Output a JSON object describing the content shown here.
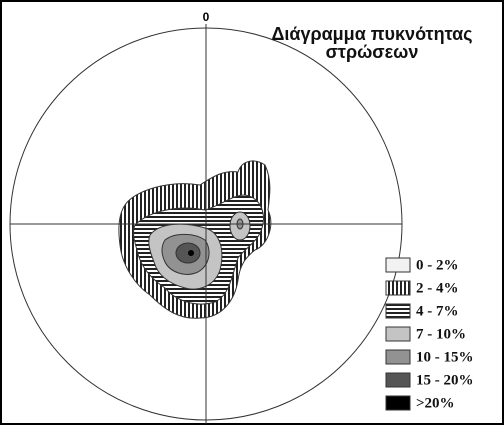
{
  "title_line1": "Διάγραμμα πυκνότητας",
  "title_line2": "στρώσεων",
  "north_label": "0",
  "legend": [
    "0 - 2%",
    "2 - 4%",
    "4 - 7%",
    "7 - 10%",
    "10 - 15%",
    "15 - 20%",
    ">20%"
  ]
}
